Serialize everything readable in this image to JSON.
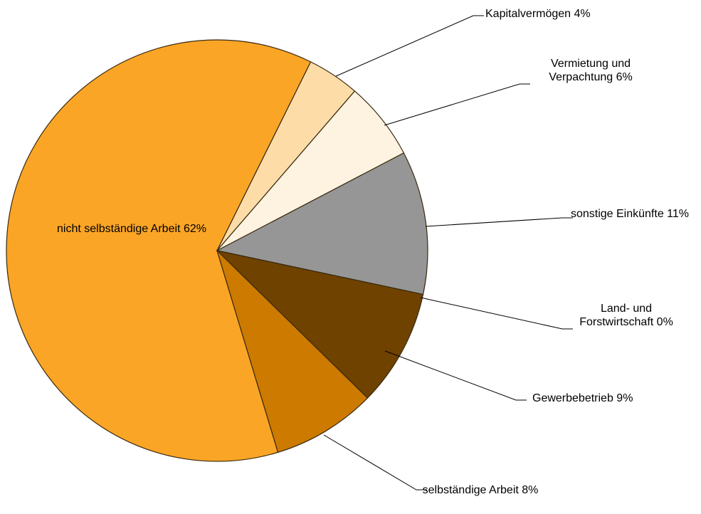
{
  "chart_data": {
    "type": "pie",
    "categories": [
      "nicht selbständige Arbeit",
      "Kapitalvermögen",
      "Vermietung und Verpachtung",
      "sonstige Einkünfte",
      "Land- und Forstwirtschaft",
      "Gewerbebetrieb",
      "selbständige Arbeit"
    ],
    "values": [
      62,
      4,
      6,
      11,
      0,
      9,
      8
    ],
    "value_labels": [
      "62%",
      "4%",
      "6%",
      "11%",
      "0%",
      "9%",
      "8%"
    ],
    "colors": [
      "#fba526",
      "#fddca8",
      "#fef3e1",
      "#969696",
      "#ffffff",
      "#6f4200",
      "#cc7a00"
    ]
  }
}
